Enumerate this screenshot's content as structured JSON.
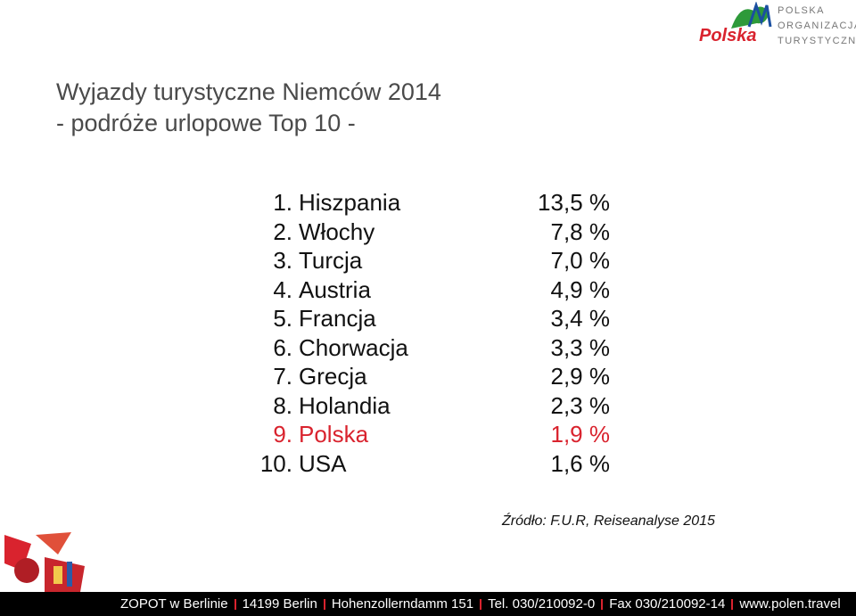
{
  "logo": {
    "wordmark": "Polska",
    "lines": [
      "POLSKA",
      "ORGANIZACJA",
      "TURYSTYCZNA"
    ]
  },
  "title": [
    "Wyjazdy turystyczne Niemców 2014",
    "- podróże urlopowe Top 10 -"
  ],
  "list": [
    {
      "rank": "1.",
      "country": "Hiszpania",
      "share": "13,5 %"
    },
    {
      "rank": "2.",
      "country": "Włochy",
      "share": "7,8 %"
    },
    {
      "rank": "3.",
      "country": "Turcja",
      "share": "7,0 %"
    },
    {
      "rank": "4.",
      "country": "Austria",
      "share": "4,9 %"
    },
    {
      "rank": "5.",
      "country": "Francja",
      "share": "3,4 %"
    },
    {
      "rank": "6.",
      "country": "Chorwacja",
      "share": "3,3 %"
    },
    {
      "rank": "7.",
      "country": "Grecja",
      "share": "2,9 %"
    },
    {
      "rank": "8.",
      "country": "Holandia",
      "share": "2,3 %"
    },
    {
      "rank": "9.",
      "country": "Polska",
      "share": "1,9 %",
      "highlight": true
    },
    {
      "rank": "10.",
      "country": "USA",
      "share": "1,6 %"
    }
  ],
  "source": "Źródło: F.U.R, Reiseanalyse 2015",
  "footer": [
    "ZOPOT w Berlinie",
    "14199 Berlin",
    "Hohenzollerndamm 151",
    "Tel. 030/210092-0",
    "Fax 030/210092-14",
    "www.polen.travel"
  ]
}
